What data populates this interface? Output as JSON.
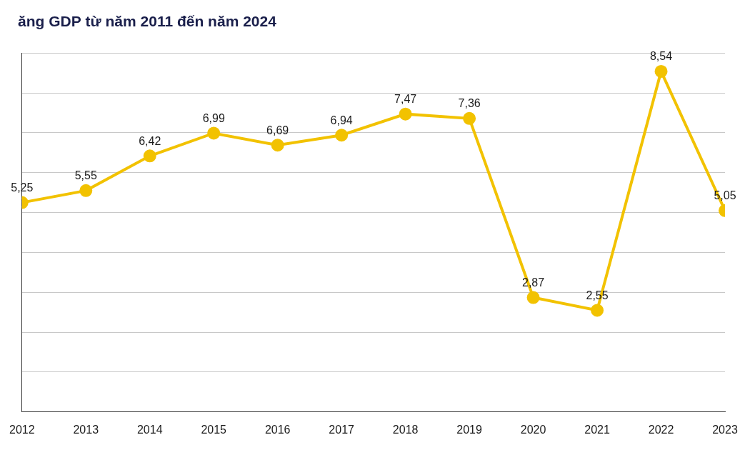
{
  "chart_data": {
    "type": "line",
    "title": "ăng GDP từ năm 2011 đến năm 2024",
    "categories": [
      "2012",
      "2013",
      "2014",
      "2015",
      "2016",
      "2017",
      "2018",
      "2019",
      "2020",
      "2021",
      "2022",
      "2023"
    ],
    "values": [
      5.25,
      5.55,
      6.42,
      6.99,
      6.69,
      6.94,
      7.47,
      7.36,
      2.87,
      2.55,
      8.54,
      5.05
    ],
    "value_labels": [
      "5,25",
      "5,55",
      "6,42",
      "6,99",
      "6,69",
      "6,94",
      "7,47",
      "7,36",
      "2,87",
      "2,55",
      "8,54",
      "5,05"
    ],
    "color": "#f2c200",
    "marker": "circle",
    "ylim": [
      0,
      9
    ],
    "yticks": [
      0,
      1,
      2,
      3,
      4,
      5,
      6,
      7,
      8,
      9
    ],
    "grid": true,
    "data_labels": true,
    "tick_labels": "x"
  }
}
